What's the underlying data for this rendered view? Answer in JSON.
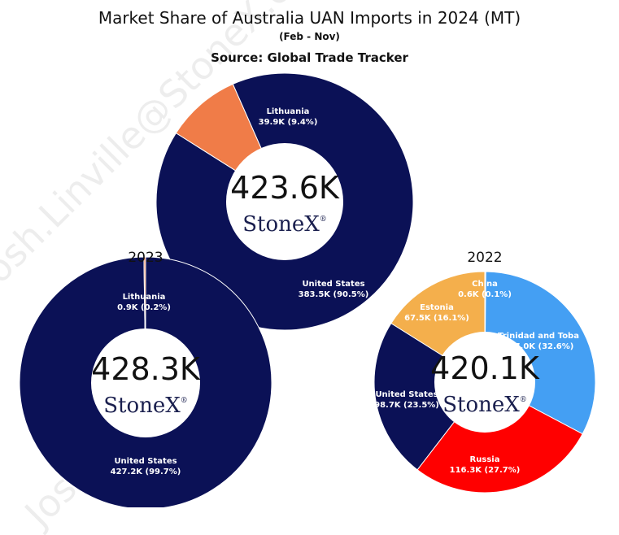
{
  "header": {
    "title": "Market Share of Australia UAN Imports in 2024 (MT)",
    "subtitle": "(Feb - Nov)",
    "source": "Source: Global Trade Tracker",
    "watermark": "Josh.Linville@StoneX.com"
  },
  "brand": {
    "logo_text": "StoneX",
    "logo_mark": "®"
  },
  "colors": {
    "United States": "#0b1156",
    "Lithuania": "#f07c48",
    "Lithuania 2023": "#f07c48",
    "Trinidad and Tobago": "#449ff3",
    "Russia": "#ff0000",
    "Estonia": "#f4af4c",
    "China": "#f4af4c"
  },
  "chart_data": [
    {
      "type": "pie",
      "year": "",
      "total_label": "423.6K",
      "slices": [
        {
          "name": "United States",
          "value": 383.5,
          "label_value": "383.5K (90.5%)"
        },
        {
          "name": "Lithuania",
          "value": 39.9,
          "label_value": "39.9K (9.4%)"
        }
      ]
    },
    {
      "type": "pie",
      "year": "2023",
      "total_label": "428.3K",
      "slices": [
        {
          "name": "United States",
          "value": 427.2,
          "label_value": "427.2K (99.7%)"
        },
        {
          "name": "Lithuania",
          "value": 0.9,
          "label_value": "0.9K (0.2%)"
        }
      ]
    },
    {
      "type": "pie",
      "year": "2022",
      "total_label": "420.1K",
      "slices": [
        {
          "name": "China",
          "value": 0.6,
          "label_value": "0.6K (0.1%)"
        },
        {
          "name": "Trinidad and Toba",
          "value": 137.0,
          "label_value": "137.0K (32.6%)"
        },
        {
          "name": "Russia",
          "value": 116.3,
          "label_value": "116.3K (27.7%)"
        },
        {
          "name": "United States",
          "value": 98.7,
          "label_value": "98.7K (23.5%)"
        },
        {
          "name": "Estonia",
          "value": 67.5,
          "label_value": "67.5K (16.1%)"
        }
      ]
    }
  ]
}
